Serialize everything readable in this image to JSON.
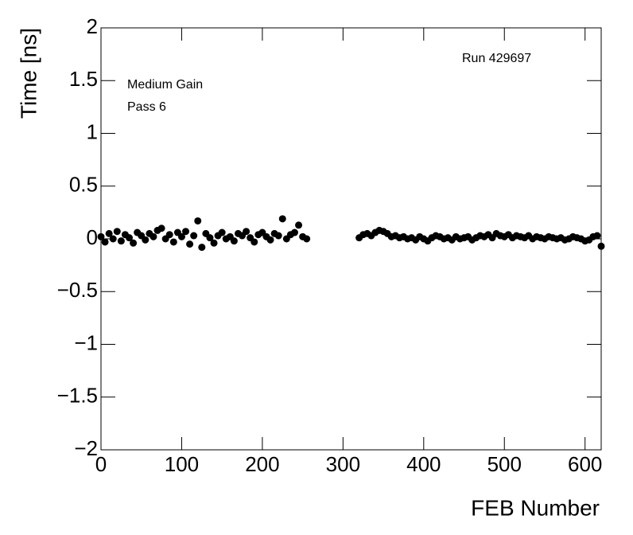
{
  "chart_data": {
    "type": "scatter",
    "x_label": "FEB Number",
    "y_label": "Time [ns]",
    "annotations": [
      "Run 429697",
      "Medium Gain",
      "Pass 6"
    ],
    "xlim": [
      0,
      620
    ],
    "xticks": [
      0,
      100,
      200,
      300,
      400,
      500,
      600
    ],
    "ylim": [
      -2,
      2
    ],
    "yticks": [
      {
        "value": -2,
        "label": "−2"
      },
      {
        "value": -1.5,
        "label": "−1.5"
      },
      {
        "value": -1,
        "label": "−1"
      },
      {
        "value": -0.5,
        "label": "−0.5"
      },
      0,
      0.5,
      1,
      1.5,
      2
    ],
    "color": "#000000",
    "x": [
      0,
      5,
      10,
      15,
      20,
      25,
      30,
      35,
      40,
      45,
      50,
      55,
      60,
      65,
      70,
      75,
      80,
      85,
      90,
      95,
      100,
      105,
      110,
      115,
      120,
      125,
      130,
      135,
      140,
      145,
      150,
      155,
      160,
      165,
      170,
      175,
      180,
      185,
      190,
      195,
      200,
      205,
      210,
      215,
      220,
      225,
      230,
      235,
      240,
      245,
      250,
      255,
      320,
      325,
      330,
      335,
      340,
      345,
      350,
      355,
      360,
      365,
      370,
      375,
      380,
      385,
      390,
      395,
      400,
      405,
      410,
      415,
      420,
      425,
      430,
      435,
      440,
      445,
      450,
      455,
      460,
      465,
      470,
      475,
      480,
      485,
      490,
      495,
      500,
      505,
      510,
      515,
      520,
      525,
      530,
      535,
      540,
      545,
      550,
      555,
      560,
      565,
      570,
      575,
      580,
      585,
      590,
      595,
      600,
      605,
      610,
      615,
      620
    ],
    "values": [
      0.02,
      -0.03,
      0.05,
      0.0,
      0.07,
      -0.02,
      0.04,
      0.01,
      -0.04,
      0.06,
      0.03,
      -0.01,
      0.05,
      0.02,
      0.08,
      0.1,
      0.0,
      0.04,
      -0.03,
      0.06,
      0.02,
      0.07,
      -0.05,
      0.03,
      0.17,
      -0.08,
      0.05,
      0.01,
      -0.04,
      0.03,
      0.06,
      0.0,
      0.02,
      -0.02,
      0.05,
      0.03,
      0.07,
      0.01,
      -0.03,
      0.04,
      0.06,
      0.02,
      -0.01,
      0.05,
      0.03,
      0.19,
      0.0,
      0.04,
      0.06,
      0.13,
      0.02,
      0.0,
      0.01,
      0.04,
      0.05,
      0.03,
      0.06,
      0.08,
      0.07,
      0.05,
      0.02,
      0.03,
      0.01,
      0.02,
      0.0,
      0.01,
      -0.01,
      0.02,
      0.0,
      -0.02,
      0.01,
      0.03,
      0.02,
      0.0,
      0.01,
      -0.01,
      0.02,
      0.0,
      0.01,
      0.02,
      -0.01,
      0.01,
      0.03,
      0.02,
      0.04,
      0.01,
      0.05,
      0.03,
      0.02,
      0.04,
      0.01,
      0.03,
      0.02,
      0.01,
      0.03,
      0.0,
      0.02,
      0.01,
      0.0,
      0.02,
      0.01,
      0.0,
      0.01,
      -0.01,
      0.0,
      0.02,
      0.01,
      0.0,
      -0.02,
      -0.01,
      0.02,
      0.03,
      -0.07
    ]
  }
}
